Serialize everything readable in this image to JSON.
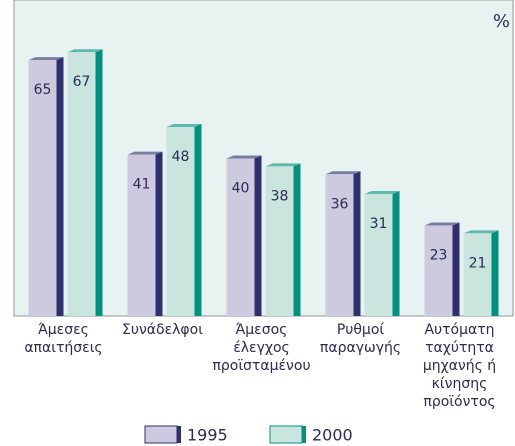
{
  "chart_data": {
    "type": "bar",
    "unit_label": "%",
    "categories": [
      [
        "Άμεσες",
        "απαιτήσεις"
      ],
      [
        "Συνάδελφοι"
      ],
      [
        "Άμεσος",
        "έλεγχος",
        "προϊσταμένου"
      ],
      [
        "Ρυθμοί",
        "παραγωγής"
      ],
      [
        "Αυτόματη",
        "ταχύτητα",
        "μηχανής ή",
        "κίνησης",
        "προϊόντος"
      ]
    ],
    "series": [
      {
        "name": "1995",
        "color": "#cdc9de",
        "side_color": "#2e2f6e",
        "values": [
          65,
          41,
          40,
          36,
          23
        ]
      },
      {
        "name": "2000",
        "color": "#c9e5dd",
        "side_color": "#00927e",
        "values": [
          67,
          48,
          38,
          31,
          21
        ]
      }
    ],
    "ylim": [
      0,
      80
    ]
  }
}
